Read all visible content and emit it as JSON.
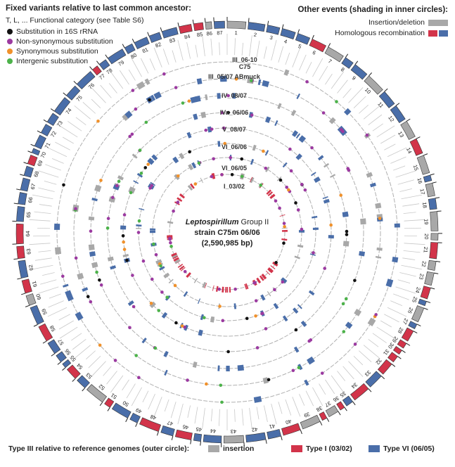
{
  "legend_left": {
    "title": "Fixed variants relative to last common ancestor:",
    "subtitle": "T, L, ... Functional category (see Table S6)",
    "items": [
      {
        "label": "Substitution in 16S rRNA",
        "color": "#111111"
      },
      {
        "label": "Non-synonymous substitution",
        "color": "#9b3aa0"
      },
      {
        "label": "Synonymous substitution",
        "color": "#f0912b"
      },
      {
        "label": "Intergenic substitution",
        "color": "#4cb24a"
      }
    ]
  },
  "legend_right": {
    "title": "Other events (shading in inner circles):",
    "items": [
      {
        "label": "Insertion/deletion",
        "colors": [
          "#a8a8a8"
        ]
      },
      {
        "label": "Homologous recombination",
        "colors": [
          "#d2344a",
          "#4a6ea9"
        ]
      }
    ]
  },
  "center": {
    "italic": "Leptospirillum",
    "line1_rest": " Group II",
    "line2": "strain C75m 06/06",
    "line3": "(2,590,985 bp)"
  },
  "rings": [
    {
      "label": "III_06-10",
      "sublabel": "C75"
    },
    {
      "label": "III_05/07 ABmuck"
    },
    {
      "label": "IV_08/07"
    },
    {
      "label": "IVa_06/06"
    },
    {
      "label": "V_08/07"
    },
    {
      "label": "VI_06/06"
    },
    {
      "label": "VI_06/05"
    },
    {
      "label": "I_03/02"
    }
  ],
  "bottom_legend": {
    "title": "Type III relative to reference genomes (outer circle):",
    "items": [
      {
        "label": "insertion",
        "color": "#a8a8a8"
      },
      {
        "label": "Type I (03/02)",
        "color": "#d2344a"
      },
      {
        "label": "Type VI (06/05)",
        "color": "#4a6ea9"
      }
    ]
  },
  "contig_numbers": [
    "1",
    "2",
    "3",
    "4",
    "5",
    "6",
    "7",
    "8",
    "9",
    "10",
    "11",
    "12",
    "13",
    "14",
    "15",
    "16",
    "17",
    "18",
    "19",
    "20",
    "21",
    "22",
    "23",
    "24",
    "25",
    "26",
    "27",
    "28",
    "29",
    "30",
    "31",
    "32",
    "33",
    "34",
    "35",
    "36",
    "37",
    "38",
    "39",
    "40",
    "41",
    "42",
    "43",
    "44",
    "45",
    "46",
    "47",
    "48",
    "49",
    "50",
    "51",
    "52",
    "53",
    "54",
    "55",
    "56",
    "57",
    "58",
    "59",
    "60",
    "61",
    "62",
    "63",
    "64",
    "65",
    "66",
    "67",
    "68",
    "69",
    "70",
    "71",
    "72",
    "73",
    "74",
    "75",
    "76",
    "77",
    "78",
    "79",
    "80",
    "81",
    "82",
    "83",
    "84",
    "85",
    "86",
    "87"
  ],
  "colors": {
    "insertion": "#a8a8a8",
    "type1": "#d2344a",
    "type6": "#4a6ea9",
    "ring_line": "#b0b0b0"
  }
}
